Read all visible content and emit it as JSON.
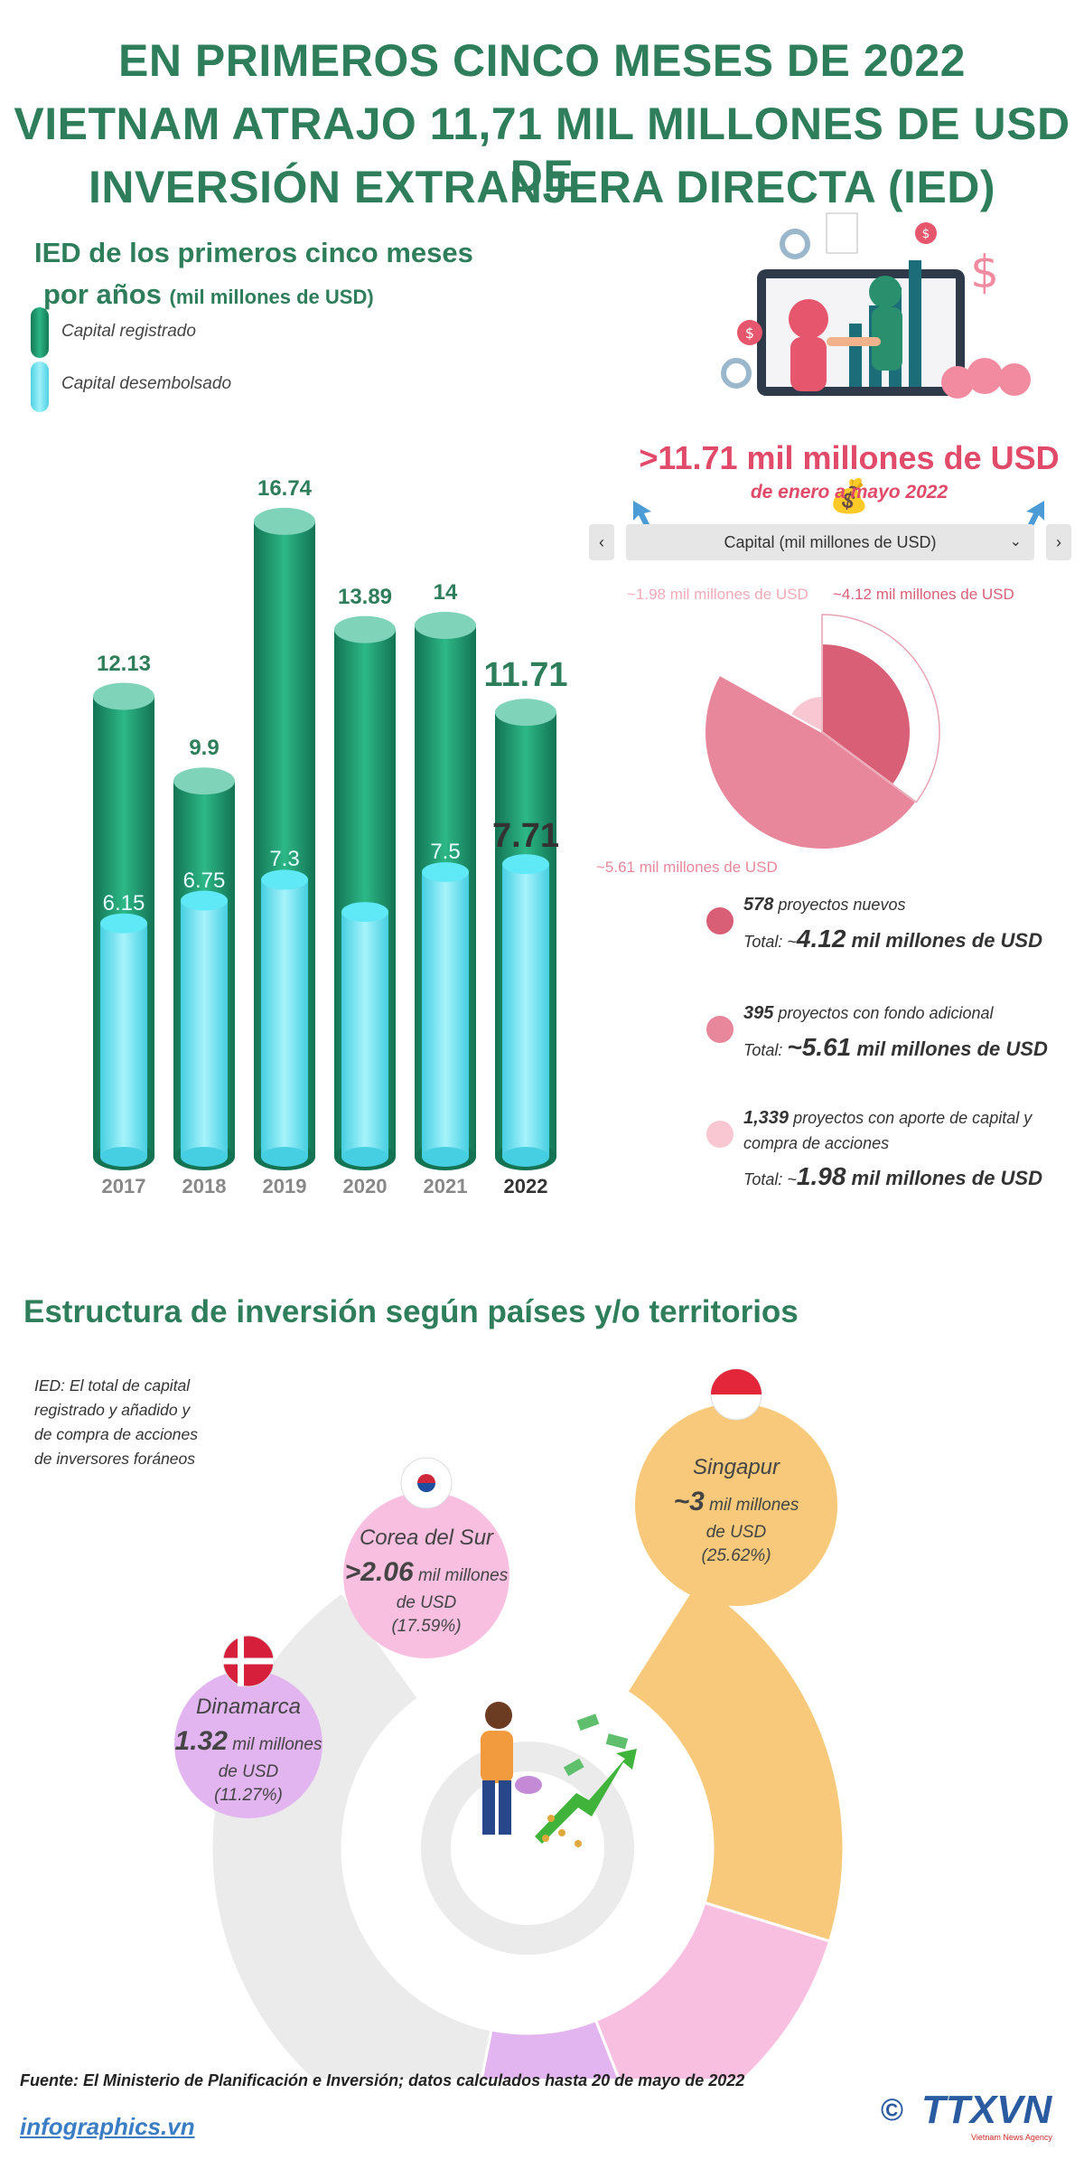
{
  "header": {
    "title_line1": "EN PRIMEROS CINCO MESES DE 2022",
    "title_line2": "VIETNAM ATRAJO 11,71 MIL MILLONES DE USD DE",
    "title_line3": "INVERSIÓN EXTRANJERA DIRECTA (IED)"
  },
  "bar_section": {
    "title_line1": "IED de los primeros cinco meses",
    "title_line2": "por años",
    "title_unit": "(mil millones de USD)",
    "legend_registered": "Capital registrado",
    "legend_disbursed": "Capital desembolsado"
  },
  "summary": {
    "headline": ">11.71 mil millones de USD",
    "money_bag_icon": "💰",
    "subhead": "de enero a mayo 2022",
    "selector_label": "Capital (mil millones de USD)",
    "prev_label": "‹",
    "next_label": "›"
  },
  "pie_labels": {
    "top_light": "~1.98 mil millones de USD",
    "top_dark": "~4.12 mil millones de USD",
    "bottom": "~5.61 mil millones de USD"
  },
  "pie_items": [
    {
      "count": "578",
      "desc": "proyectos nuevos",
      "total_prefix": "Total: ~",
      "total_value": "4.12",
      "total_unit": "mil millones de USD",
      "color": "#d95f77"
    },
    {
      "count": "395",
      "desc": "proyectos con fondo adicional",
      "total_prefix": "Total: ",
      "total_value": "~5.61",
      "total_unit": "mil millones de USD",
      "color": "#e8879b"
    },
    {
      "count": "1,339",
      "desc": "proyectos con aporte de capital y",
      "desc2": "compra de acciones",
      "total_prefix": "Total: ~",
      "total_value": "1.98",
      "total_unit": "mil millones de USD",
      "color": "#f8c7d2"
    }
  ],
  "countries_section": {
    "title": "Estructura de inversión según países y/o territorios",
    "note_line1": "IED: El total de capital",
    "note_line2": "registrado y añadido y",
    "note_line3": "de compra de acciones",
    "note_line4": "de inversores foráneos",
    "countries": [
      {
        "name": "Singapur",
        "prefix": "~",
        "value": "3",
        "unit1": "mil millones",
        "unit2": "de USD",
        "share": "(25.62%)",
        "color": "#f8c97a",
        "flag": "singapore-flag-icon"
      },
      {
        "name": "Corea del Sur",
        "prefix": ">",
        "value": "2.06",
        "unit1": "mil millones",
        "unit2": "de USD",
        "share": "(17.59%)",
        "color": "#f9bfe0",
        "flag": "south-korea-flag-icon"
      },
      {
        "name": "Dinamarca",
        "prefix": "",
        "value": "1.32",
        "unit1": "mil millones",
        "unit2": "de USD",
        "share": "(11.27%)",
        "color": "#e2b5f0",
        "flag": "denmark-flag-icon"
      }
    ]
  },
  "footer": {
    "source": "Fuente: El Ministerio de Planificación e Inversión; datos calculados hasta 20 de mayo de 2022",
    "site": "infographics.vn",
    "copyright": "©",
    "agency": "TTXVN",
    "agency_sub": "Vietnam News Agency"
  },
  "chart_data": [
    {
      "type": "bar",
      "categories": [
        "2017",
        "2018",
        "2019",
        "2020",
        "2021",
        "2022"
      ],
      "series": [
        {
          "name": "Capital registrado",
          "values": [
            12.13,
            9.9,
            16.74,
            13.89,
            14,
            11.71
          ],
          "color": "#1f9e72"
        },
        {
          "name": "Capital desembolsado",
          "values": [
            6.15,
            6.75,
            7.3,
            null,
            7.5,
            7.71
          ],
          "color": "#63e3f3"
        }
      ],
      "ylim": [
        0,
        18
      ]
    },
    {
      "type": "pie",
      "labels": [
        "proyectos nuevos",
        "proyectos con fondo adicional",
        "proyectos con aporte de capital y compra de acciones"
      ],
      "values": [
        4.12,
        5.61,
        1.98
      ],
      "colors": [
        "#d95f77",
        "#e8879b",
        "#f8c7d2"
      ]
    },
    {
      "type": "pie",
      "labels": [
        "Singapur",
        "Corea del Sur",
        "Dinamarca",
        ""
      ],
      "values": [
        25.62,
        17.59,
        11.27,
        45.52
      ],
      "colors": [
        "#f8c97a",
        "#f9bfe0",
        "#e2b5f0",
        "#ebebeb"
      ]
    }
  ]
}
